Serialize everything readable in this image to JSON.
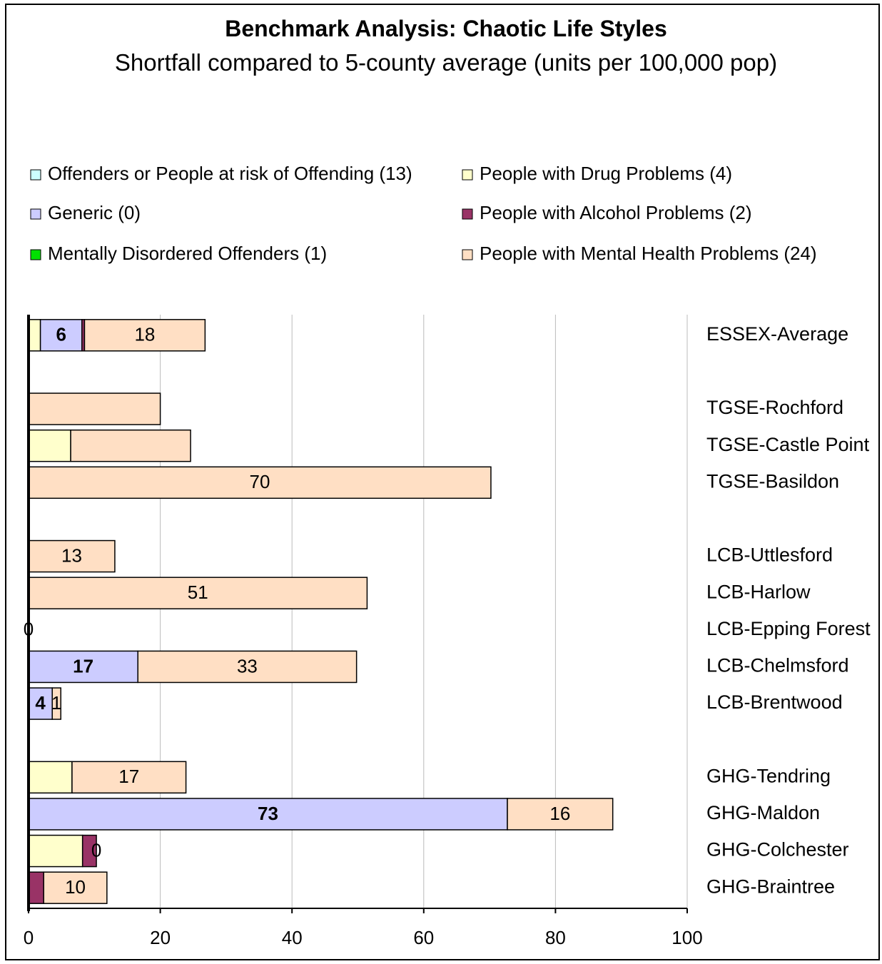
{
  "chart_data": {
    "type": "stacked_barh",
    "title": "Benchmark Analysis: Chaotic Life Styles",
    "subtitle": "Shortfall compared to 5-county average (units per 100,000 pop)",
    "categories": [
      "ESSEX-Average",
      null,
      "TGSE-Rochford",
      "TGSE-Castle Point",
      "TGSE-Basildon",
      null,
      "LCB-Uttlesford",
      "LCB-Harlow",
      "LCB-Epping Forest",
      "LCB-Chelmsford",
      "LCB-Brentwood",
      null,
      "GHG-Tendring",
      "GHG-Maldon",
      "GHG-Colchester",
      "GHG-Braintree"
    ],
    "series": [
      {
        "name": "Offenders or People at risk of Offending (13)",
        "color": "#ccffff",
        "values": [
          0,
          null,
          0,
          0,
          0,
          null,
          0,
          0,
          0,
          0,
          0,
          null,
          0,
          0,
          0,
          0
        ]
      },
      {
        "name": "People with Drug Problems (4)",
        "color": "#ffffcc",
        "values": [
          1.8,
          null,
          0,
          6.4,
          0,
          null,
          0,
          0,
          0,
          0,
          0,
          null,
          6.6,
          0,
          8.2,
          0
        ]
      },
      {
        "name": "Generic (0)",
        "color": "#ccccff",
        "label_style": "bold",
        "values": [
          6.3,
          null,
          0,
          0,
          0,
          null,
          0,
          0,
          0,
          16.6,
          3.6,
          null,
          0,
          72.7,
          0,
          0
        ],
        "value_labels": [
          "6",
          null,
          null,
          null,
          null,
          null,
          null,
          null,
          null,
          "17",
          "4",
          null,
          null,
          "73",
          null,
          null
        ]
      },
      {
        "name": "People with Alcohol Problems (2)",
        "color": "#993366",
        "values": [
          0.4,
          null,
          0,
          0,
          0,
          null,
          0,
          0,
          0,
          0,
          0,
          null,
          0,
          0,
          2.1,
          2.3
        ]
      },
      {
        "name": "Mentally Disordered Offenders (1)",
        "color": "#00e000",
        "values": [
          0,
          null,
          0,
          0,
          0,
          null,
          0,
          0,
          0,
          0,
          0,
          null,
          0,
          0,
          0,
          0
        ]
      },
      {
        "name": "People with Mental Health Problems (24)",
        "color": "#ffdfc4",
        "values": [
          18.3,
          null,
          20.0,
          18.2,
          70.2,
          null,
          13.1,
          51.4,
          0,
          33.2,
          1.3,
          null,
          17.3,
          16.0,
          0,
          9.6
        ],
        "value_labels": [
          "18",
          null,
          null,
          null,
          "70",
          null,
          "13",
          "51",
          "0",
          "33",
          "1",
          null,
          "17",
          "16",
          "0",
          "10"
        ]
      }
    ],
    "xlim": [
      0,
      100
    ],
    "xticks": [
      0,
      20,
      40,
      60,
      80,
      100
    ],
    "grid": true
  }
}
